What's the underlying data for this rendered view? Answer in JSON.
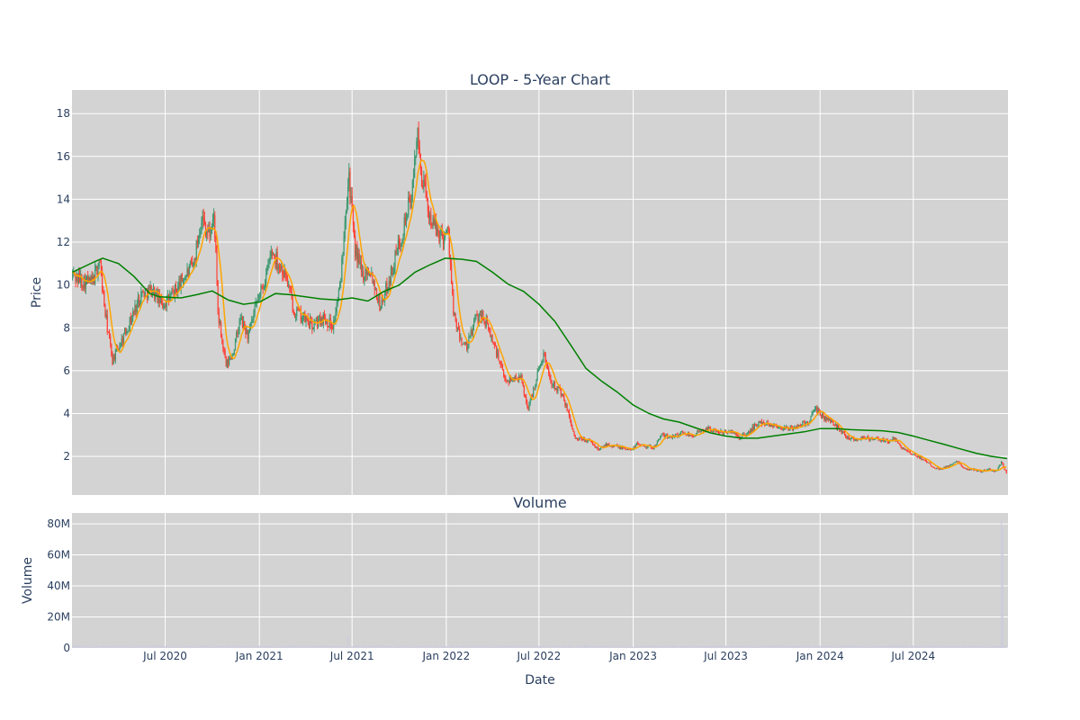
{
  "chart_data": [
    {
      "type": "candlestick",
      "title": "LOOP - 5-Year Chart",
      "ylabel": "Price",
      "xlabel": "",
      "ylim": [
        0.2,
        19.1
      ],
      "yticks": [
        2,
        4,
        6,
        8,
        10,
        12,
        14,
        16,
        18
      ],
      "xlim": [
        "2020-01-01",
        "2025-01-02"
      ],
      "grid": true,
      "legend": "none",
      "colors": {
        "up": "#3d9970",
        "down": "#ff4136",
        "short_ma": "#ffa500",
        "long_ma": "#008000",
        "plot_bg": "#d3d3d3"
      },
      "price_path": [
        [
          "2020-01-02",
          10.5
        ],
        [
          "2020-01-20",
          10.2
        ],
        [
          "2020-02-10",
          10.1
        ],
        [
          "2020-02-24",
          11.2
        ],
        [
          "2020-03-05",
          8.8
        ],
        [
          "2020-03-20",
          6.5
        ],
        [
          "2020-04-05",
          7.3
        ],
        [
          "2020-04-25",
          8.4
        ],
        [
          "2020-05-15",
          9.6
        ],
        [
          "2020-06-05",
          9.8
        ],
        [
          "2020-06-25",
          9.1
        ],
        [
          "2020-07-15",
          9.5
        ],
        [
          "2020-08-05",
          10.3
        ],
        [
          "2020-08-25",
          10.9
        ],
        [
          "2020-09-10",
          13.2
        ],
        [
          "2020-09-25",
          12.3
        ],
        [
          "2020-10-05",
          13.2
        ],
        [
          "2020-10-12",
          8.6
        ],
        [
          "2020-10-28",
          6.2
        ],
        [
          "2020-11-10",
          6.8
        ],
        [
          "2020-11-25",
          8.4
        ],
        [
          "2020-12-10",
          7.6
        ],
        [
          "2020-12-28",
          9.2
        ],
        [
          "2021-01-15",
          10.5
        ],
        [
          "2021-01-25",
          11.6
        ],
        [
          "2021-02-08",
          11.0
        ],
        [
          "2021-02-22",
          10.4
        ],
        [
          "2021-03-08",
          8.9
        ],
        [
          "2021-03-25",
          8.5
        ],
        [
          "2021-04-15",
          8.1
        ],
        [
          "2021-05-05",
          8.5
        ],
        [
          "2021-05-25",
          8.1
        ],
        [
          "2021-06-08",
          10.0
        ],
        [
          "2021-06-18",
          13.6
        ],
        [
          "2021-06-25",
          15.2
        ],
        [
          "2021-07-05",
          11.9
        ],
        [
          "2021-07-20",
          10.5
        ],
        [
          "2021-08-05",
          10.8
        ],
        [
          "2021-08-25",
          9.0
        ],
        [
          "2021-09-10",
          10.1
        ],
        [
          "2021-09-25",
          11.4
        ],
        [
          "2021-10-10",
          12.8
        ],
        [
          "2021-10-28",
          14.5
        ],
        [
          "2021-11-04",
          17.2
        ],
        [
          "2021-11-12",
          15.4
        ],
        [
          "2021-11-25",
          13.6
        ],
        [
          "2021-12-10",
          12.6
        ],
        [
          "2021-12-25",
          12.3
        ],
        [
          "2022-01-05",
          12.5
        ],
        [
          "2022-01-15",
          8.6
        ],
        [
          "2022-01-28",
          7.5
        ],
        [
          "2022-02-10",
          7.0
        ],
        [
          "2022-02-25",
          8.3
        ],
        [
          "2022-03-10",
          8.7
        ],
        [
          "2022-03-25",
          7.9
        ],
        [
          "2022-04-10",
          6.8
        ],
        [
          "2022-04-25",
          5.6
        ],
        [
          "2022-05-10",
          5.6
        ],
        [
          "2022-05-25",
          5.8
        ],
        [
          "2022-06-10",
          4.2
        ],
        [
          "2022-06-25",
          5.6
        ],
        [
          "2022-07-10",
          6.8
        ],
        [
          "2022-07-25",
          5.5
        ],
        [
          "2022-08-10",
          5.1
        ],
        [
          "2022-08-25",
          4.2
        ],
        [
          "2022-09-10",
          2.8
        ],
        [
          "2022-09-25",
          2.8
        ],
        [
          "2022-10-10",
          2.7
        ],
        [
          "2022-10-25",
          2.3
        ],
        [
          "2022-11-10",
          2.6
        ],
        [
          "2022-11-25",
          2.5
        ],
        [
          "2022-12-10",
          2.4
        ],
        [
          "2022-12-25",
          2.3
        ],
        [
          "2023-01-10",
          2.6
        ],
        [
          "2023-01-25",
          2.5
        ],
        [
          "2023-02-10",
          2.4
        ],
        [
          "2023-02-25",
          3.0
        ],
        [
          "2023-03-10",
          2.9
        ],
        [
          "2023-03-25",
          3.0
        ],
        [
          "2023-04-10",
          3.1
        ],
        [
          "2023-04-25",
          3.0
        ],
        [
          "2023-05-10",
          3.1
        ],
        [
          "2023-05-25",
          3.3
        ],
        [
          "2023-06-10",
          3.2
        ],
        [
          "2023-06-25",
          3.1
        ],
        [
          "2023-07-10",
          3.2
        ],
        [
          "2023-07-25",
          2.9
        ],
        [
          "2023-08-10",
          3.0
        ],
        [
          "2023-08-25",
          3.4
        ],
        [
          "2023-09-10",
          3.6
        ],
        [
          "2023-09-25",
          3.5
        ],
        [
          "2023-10-10",
          3.4
        ],
        [
          "2023-10-25",
          3.3
        ],
        [
          "2023-11-10",
          3.3
        ],
        [
          "2023-11-25",
          3.5
        ],
        [
          "2023-12-10",
          3.6
        ],
        [
          "2023-12-22",
          4.2
        ],
        [
          "2024-01-10",
          3.8
        ],
        [
          "2024-01-25",
          3.6
        ],
        [
          "2024-02-10",
          3.2
        ],
        [
          "2024-02-25",
          2.9
        ],
        [
          "2024-03-10",
          2.8
        ],
        [
          "2024-03-25",
          2.9
        ],
        [
          "2024-04-10",
          2.8
        ],
        [
          "2024-04-25",
          2.8
        ],
        [
          "2024-05-10",
          2.7
        ],
        [
          "2024-05-25",
          2.8
        ],
        [
          "2024-06-10",
          2.4
        ],
        [
          "2024-06-25",
          2.1
        ],
        [
          "2024-07-10",
          2.0
        ],
        [
          "2024-07-25",
          1.8
        ],
        [
          "2024-08-10",
          1.5
        ],
        [
          "2024-08-25",
          1.4
        ],
        [
          "2024-09-10",
          1.6
        ],
        [
          "2024-09-25",
          1.8
        ],
        [
          "2024-10-10",
          1.4
        ],
        [
          "2024-10-25",
          1.4
        ],
        [
          "2024-11-10",
          1.3
        ],
        [
          "2024-11-25",
          1.4
        ],
        [
          "2024-12-10",
          1.3
        ],
        [
          "2024-12-20",
          1.7
        ],
        [
          "2024-12-31",
          1.2
        ]
      ],
      "long_ma": [
        [
          "2020-01-02",
          10.6
        ],
        [
          "2020-02-15",
          11.1
        ],
        [
          "2020-03-01",
          11.25
        ],
        [
          "2020-04-01",
          11.0
        ],
        [
          "2020-05-01",
          10.4
        ],
        [
          "2020-06-01",
          9.6
        ],
        [
          "2020-06-20",
          9.45
        ],
        [
          "2020-08-01",
          9.4
        ],
        [
          "2020-09-01",
          9.55
        ],
        [
          "2020-10-01",
          9.72
        ],
        [
          "2020-11-01",
          9.3
        ],
        [
          "2020-12-01",
          9.1
        ],
        [
          "2021-01-01",
          9.2
        ],
        [
          "2021-02-01",
          9.6
        ],
        [
          "2021-03-01",
          9.55
        ],
        [
          "2021-04-01",
          9.45
        ],
        [
          "2021-05-01",
          9.35
        ],
        [
          "2021-06-01",
          9.3
        ],
        [
          "2021-07-01",
          9.4
        ],
        [
          "2021-08-01",
          9.25
        ],
        [
          "2021-09-01",
          9.7
        ],
        [
          "2021-10-01",
          10.0
        ],
        [
          "2021-11-01",
          10.6
        ],
        [
          "2021-12-01",
          10.95
        ],
        [
          "2021-12-30",
          11.25
        ],
        [
          "2022-02-01",
          11.2
        ],
        [
          "2022-03-01",
          11.1
        ],
        [
          "2022-04-01",
          10.6
        ],
        [
          "2022-05-01",
          10.05
        ],
        [
          "2022-06-01",
          9.7
        ],
        [
          "2022-07-01",
          9.1
        ],
        [
          "2022-08-01",
          8.3
        ],
        [
          "2022-09-01",
          7.2
        ],
        [
          "2022-10-01",
          6.1
        ],
        [
          "2022-11-01",
          5.5
        ],
        [
          "2022-12-01",
          5.0
        ],
        [
          "2023-01-01",
          4.4
        ],
        [
          "2023-02-01",
          4.0
        ],
        [
          "2023-03-01",
          3.75
        ],
        [
          "2023-04-01",
          3.6
        ],
        [
          "2023-05-01",
          3.35
        ],
        [
          "2023-06-01",
          3.1
        ],
        [
          "2023-07-01",
          2.95
        ],
        [
          "2023-08-01",
          2.85
        ],
        [
          "2023-09-01",
          2.85
        ],
        [
          "2023-10-01",
          2.95
        ],
        [
          "2023-11-01",
          3.05
        ],
        [
          "2023-12-01",
          3.15
        ],
        [
          "2024-01-01",
          3.3
        ],
        [
          "2024-02-01",
          3.3
        ],
        [
          "2024-03-01",
          3.25
        ],
        [
          "2024-04-01",
          3.22
        ],
        [
          "2024-05-01",
          3.2
        ],
        [
          "2024-06-01",
          3.12
        ],
        [
          "2024-07-01",
          2.95
        ],
        [
          "2024-08-01",
          2.75
        ],
        [
          "2024-09-01",
          2.55
        ],
        [
          "2024-10-01",
          2.35
        ],
        [
          "2024-11-01",
          2.15
        ],
        [
          "2024-12-01",
          2.0
        ],
        [
          "2024-12-31",
          1.9
        ]
      ]
    },
    {
      "type": "bar",
      "title": "Volume",
      "xlabel": "Date",
      "ylabel": "Volume",
      "ylim": [
        0,
        87
      ],
      "yticks": [
        0,
        20,
        40,
        60,
        80
      ],
      "ytick_labels": [
        "0",
        "20M",
        "40M",
        "60M",
        "80M"
      ],
      "xticks": [
        "2020-07-01",
        "2021-01-01",
        "2021-07-01",
        "2022-01-01",
        "2022-07-01",
        "2023-01-01",
        "2023-07-01",
        "2024-01-01",
        "2024-07-01"
      ],
      "xtick_labels": [
        "Jul 2020",
        "Jan 2021",
        "Jul 2021",
        "Jan 2022",
        "Jul 2022",
        "Jan 2023",
        "Jul 2023",
        "Jan 2024",
        "Jul 2024"
      ],
      "spikes": [
        [
          "2021-06-24",
          8
        ],
        [
          "2024-12-20",
          82
        ],
        [
          "2024-12-23",
          78
        ]
      ],
      "color": "#ccccdd"
    }
  ]
}
